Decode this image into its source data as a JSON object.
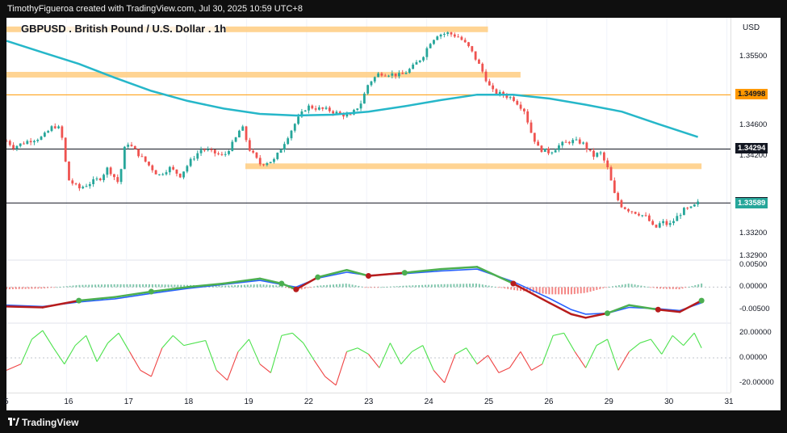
{
  "header": {
    "attribution": "TimothyFigueroa created with TradingView.com, Jul 30, 2025 10:59 UTC+8"
  },
  "footer": {
    "brand": "TradingView"
  },
  "chart_data": [
    {
      "type": "candlestick",
      "title": "GBPUSD . British Pound / U.S. Dollar . 1h",
      "currency": "USD",
      "y_ticks": [
        "1.35500",
        "1.34600",
        "1.34200",
        "1.33200",
        "1.32900"
      ],
      "x_ticks": [
        "5",
        "16",
        "17",
        "18",
        "19",
        "22",
        "23",
        "24",
        "25",
        "26",
        "29",
        "30",
        "31"
      ],
      "ylim": [
        1.3285,
        1.36
      ],
      "price_tags": [
        {
          "label": "1.34998",
          "value": 1.34998,
          "bg": "#ff9800",
          "fg": "#131722"
        },
        {
          "label": "1.34294",
          "value": 1.34294,
          "bg": "#131722",
          "fg": "#ffffff"
        },
        {
          "label": "1.33593",
          "value": 1.33593,
          "bg": "#131722",
          "fg": "#ffffff"
        },
        {
          "label": "1.33589",
          "value": 1.33589,
          "bg": "#26a69a",
          "fg": "#ffffff"
        }
      ],
      "horizontal_lines": [
        {
          "value": 1.34294,
          "color": "#131722"
        },
        {
          "value": 1.33593,
          "color": "#131722"
        },
        {
          "value": 1.34998,
          "color": "#ff9800"
        }
      ],
      "zones": [
        {
          "value": 1.3585,
          "x_start": 0,
          "x_end": 0.665
        },
        {
          "value": 1.3526,
          "x_start": 0,
          "x_end": 0.71
        },
        {
          "value": 1.3407,
          "x_start": 0.33,
          "x_end": 0.96
        }
      ],
      "close_path": [
        [
          0,
          1.344
        ],
        [
          0.01,
          1.3432
        ],
        [
          0.03,
          1.344
        ],
        [
          0.05,
          1.3445
        ],
        [
          0.065,
          1.346
        ],
        [
          0.075,
          1.3455
        ],
        [
          0.085,
          1.339
        ],
        [
          0.1,
          1.3378
        ],
        [
          0.115,
          1.3385
        ],
        [
          0.13,
          1.3392
        ],
        [
          0.14,
          1.3405
        ],
        [
          0.155,
          1.3385
        ],
        [
          0.165,
          1.344
        ],
        [
          0.18,
          1.3425
        ],
        [
          0.195,
          1.341
        ],
        [
          0.21,
          1.3395
        ],
        [
          0.225,
          1.3405
        ],
        [
          0.24,
          1.3395
        ],
        [
          0.255,
          1.3415
        ],
        [
          0.27,
          1.343
        ],
        [
          0.285,
          1.3425
        ],
        [
          0.3,
          1.342
        ],
        [
          0.315,
          1.344
        ],
        [
          0.325,
          1.346
        ],
        [
          0.335,
          1.343
        ],
        [
          0.35,
          1.341
        ],
        [
          0.37,
          1.3415
        ],
        [
          0.385,
          1.344
        ],
        [
          0.4,
          1.3465
        ],
        [
          0.415,
          1.3485
        ],
        [
          0.43,
          1.3482
        ],
        [
          0.445,
          1.348
        ],
        [
          0.46,
          1.3475
        ],
        [
          0.475,
          1.3472
        ],
        [
          0.49,
          1.349
        ],
        [
          0.5,
          1.3515
        ],
        [
          0.515,
          1.3528
        ],
        [
          0.53,
          1.3527
        ],
        [
          0.545,
          1.3525
        ],
        [
          0.56,
          1.3535
        ],
        [
          0.575,
          1.355
        ],
        [
          0.585,
          1.3568
        ],
        [
          0.595,
          1.3578
        ],
        [
          0.61,
          1.358
        ],
        [
          0.625,
          1.3575
        ],
        [
          0.64,
          1.356
        ],
        [
          0.655,
          1.3535
        ],
        [
          0.67,
          1.3505
        ],
        [
          0.685,
          1.35
        ],
        [
          0.7,
          1.3495
        ],
        [
          0.715,
          1.348
        ],
        [
          0.725,
          1.345
        ],
        [
          0.735,
          1.343
        ],
        [
          0.75,
          1.3425
        ],
        [
          0.765,
          1.3435
        ],
        [
          0.78,
          1.344
        ],
        [
          0.795,
          1.3438
        ],
        [
          0.81,
          1.342
        ],
        [
          0.82,
          1.3425
        ],
        [
          0.83,
          1.3405
        ],
        [
          0.84,
          1.337
        ],
        [
          0.85,
          1.3355
        ],
        [
          0.86,
          1.335
        ],
        [
          0.875,
          1.3345
        ],
        [
          0.885,
          1.334
        ],
        [
          0.895,
          1.3325
        ],
        [
          0.905,
          1.3335
        ],
        [
          0.915,
          1.333
        ],
        [
          0.925,
          1.334
        ],
        [
          0.935,
          1.335
        ],
        [
          0.945,
          1.3352
        ],
        [
          0.955,
          1.3359
        ]
      ],
      "ma_path": [
        [
          0,
          1.357
        ],
        [
          0.05,
          1.3555
        ],
        [
          0.1,
          1.354
        ],
        [
          0.15,
          1.3522
        ],
        [
          0.2,
          1.3505
        ],
        [
          0.25,
          1.3492
        ],
        [
          0.3,
          1.3482
        ],
        [
          0.35,
          1.3475
        ],
        [
          0.4,
          1.3473
        ],
        [
          0.45,
          1.3474
        ],
        [
          0.5,
          1.3478
        ],
        [
          0.55,
          1.3485
        ],
        [
          0.6,
          1.3493
        ],
        [
          0.65,
          1.35
        ],
        [
          0.7,
          1.35
        ],
        [
          0.75,
          1.3495
        ],
        [
          0.8,
          1.3487
        ],
        [
          0.85,
          1.3478
        ],
        [
          0.9,
          1.3462
        ],
        [
          0.955,
          1.3445
        ]
      ]
    },
    {
      "type": "line",
      "name": "oscillator",
      "y_ticks": [
        "0.00500",
        "0.00000",
        "-0.00500"
      ],
      "ylim": [
        -0.008,
        0.006
      ],
      "fast": [
        [
          0,
          -0.0043
        ],
        [
          0.05,
          -0.0045
        ],
        [
          0.1,
          -0.003
        ],
        [
          0.15,
          -0.0022
        ],
        [
          0.2,
          -0.001
        ],
        [
          0.25,
          0.0
        ],
        [
          0.3,
          0.0008
        ],
        [
          0.35,
          0.0019
        ],
        [
          0.38,
          0.0008
        ],
        [
          0.4,
          -0.0005
        ],
        [
          0.43,
          0.0022
        ],
        [
          0.47,
          0.0038
        ],
        [
          0.5,
          0.0025
        ],
        [
          0.55,
          0.0032
        ],
        [
          0.6,
          0.004
        ],
        [
          0.65,
          0.0045
        ],
        [
          0.7,
          0.0008
        ],
        [
          0.75,
          -0.0035
        ],
        [
          0.78,
          -0.006
        ],
        [
          0.8,
          -0.0068
        ],
        [
          0.83,
          -0.0058
        ],
        [
          0.86,
          -0.004
        ],
        [
          0.9,
          -0.005
        ],
        [
          0.93,
          -0.0055
        ],
        [
          0.96,
          -0.003
        ]
      ],
      "slow": [
        [
          0,
          -0.004
        ],
        [
          0.05,
          -0.0043
        ],
        [
          0.1,
          -0.0033
        ],
        [
          0.15,
          -0.0026
        ],
        [
          0.2,
          -0.0014
        ],
        [
          0.25,
          -0.0003
        ],
        [
          0.3,
          0.0006
        ],
        [
          0.35,
          0.0015
        ],
        [
          0.38,
          0.0006
        ],
        [
          0.4,
          0.0
        ],
        [
          0.43,
          0.002
        ],
        [
          0.47,
          0.0033
        ],
        [
          0.5,
          0.0026
        ],
        [
          0.55,
          0.003
        ],
        [
          0.6,
          0.0036
        ],
        [
          0.65,
          0.004
        ],
        [
          0.7,
          0.0012
        ],
        [
          0.75,
          -0.0025
        ],
        [
          0.78,
          -0.005
        ],
        [
          0.8,
          -0.006
        ],
        [
          0.83,
          -0.0058
        ],
        [
          0.86,
          -0.0045
        ],
        [
          0.9,
          -0.0048
        ],
        [
          0.93,
          -0.0052
        ],
        [
          0.96,
          -0.0035
        ]
      ]
    },
    {
      "type": "line",
      "name": "momentum",
      "y_ticks": [
        "20.00000",
        "0.00000",
        "-20.00000"
      ],
      "ylim": [
        -28,
        28
      ],
      "values": [
        [
          0,
          -10
        ],
        [
          0.02,
          -5
        ],
        [
          0.035,
          15
        ],
        [
          0.05,
          22
        ],
        [
          0.065,
          8
        ],
        [
          0.08,
          -5
        ],
        [
          0.095,
          10
        ],
        [
          0.11,
          18
        ],
        [
          0.125,
          -3
        ],
        [
          0.14,
          12
        ],
        [
          0.155,
          20
        ],
        [
          0.17,
          5
        ],
        [
          0.185,
          -10
        ],
        [
          0.2,
          -15
        ],
        [
          0.215,
          8
        ],
        [
          0.23,
          18
        ],
        [
          0.245,
          10
        ],
        [
          0.26,
          12
        ],
        [
          0.275,
          14
        ],
        [
          0.29,
          -10
        ],
        [
          0.305,
          -18
        ],
        [
          0.32,
          5
        ],
        [
          0.335,
          15
        ],
        [
          0.35,
          -5
        ],
        [
          0.365,
          -12
        ],
        [
          0.38,
          18
        ],
        [
          0.395,
          20
        ],
        [
          0.41,
          12
        ],
        [
          0.425,
          -2
        ],
        [
          0.44,
          -15
        ],
        [
          0.455,
          -22
        ],
        [
          0.47,
          5
        ],
        [
          0.485,
          8
        ],
        [
          0.5,
          3
        ],
        [
          0.515,
          -8
        ],
        [
          0.53,
          12
        ],
        [
          0.545,
          -5
        ],
        [
          0.56,
          5
        ],
        [
          0.575,
          10
        ],
        [
          0.59,
          -10
        ],
        [
          0.605,
          -20
        ],
        [
          0.62,
          3
        ],
        [
          0.635,
          8
        ],
        [
          0.65,
          -5
        ],
        [
          0.665,
          2
        ],
        [
          0.68,
          -12
        ],
        [
          0.695,
          -8
        ],
        [
          0.71,
          5
        ],
        [
          0.725,
          -10
        ],
        [
          0.74,
          -5
        ],
        [
          0.755,
          18
        ],
        [
          0.77,
          20
        ],
        [
          0.785,
          5
        ],
        [
          0.8,
          -8
        ],
        [
          0.815,
          10
        ],
        [
          0.83,
          15
        ],
        [
          0.845,
          -10
        ],
        [
          0.86,
          5
        ],
        [
          0.875,
          12
        ],
        [
          0.89,
          15
        ],
        [
          0.905,
          3
        ],
        [
          0.92,
          18
        ],
        [
          0.935,
          10
        ],
        [
          0.95,
          20
        ],
        [
          0.96,
          8
        ]
      ]
    }
  ]
}
